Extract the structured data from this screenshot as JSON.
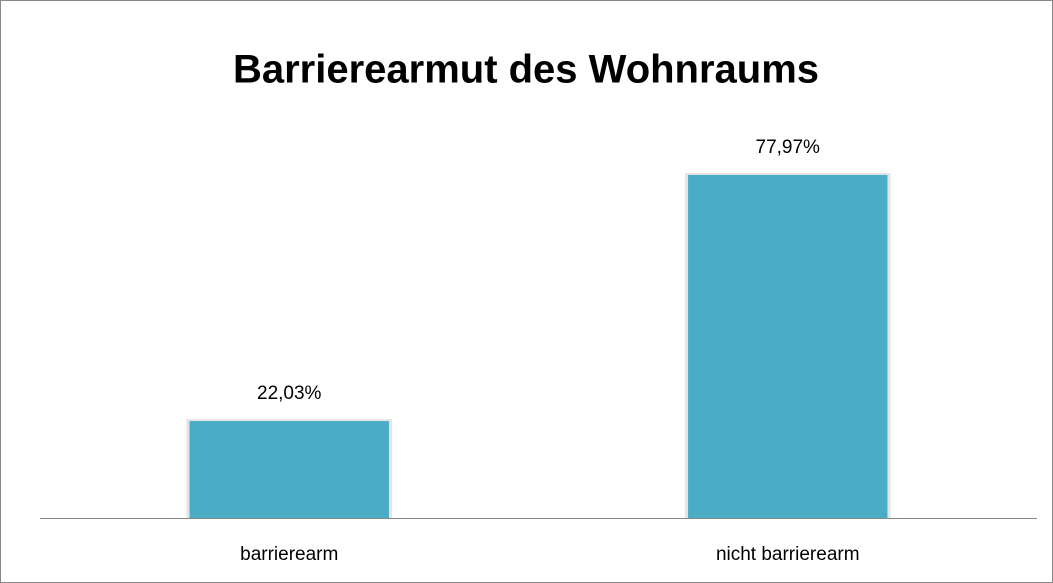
{
  "chart_data": {
    "type": "bar",
    "title": "Barrierearmut des Wohnraums",
    "categories": [
      "barrierearm",
      "nicht barrierearm"
    ],
    "values": [
      22.03,
      77.97
    ],
    "value_labels": [
      "22,03%",
      "77,97%"
    ],
    "color": "#4bacc6"
  }
}
